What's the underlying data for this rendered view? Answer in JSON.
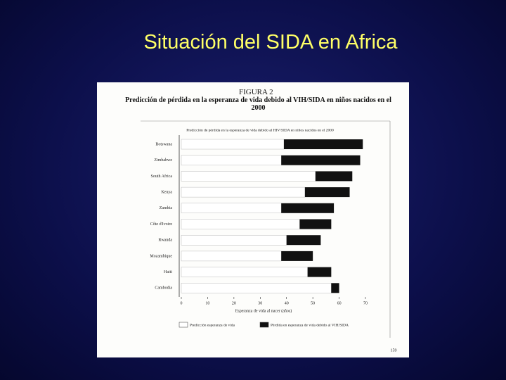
{
  "slide_title": "Situación del SIDA en Africa",
  "chart_data": {
    "type": "stacked-bar-horizontal",
    "figure_label": "FIGURA 2",
    "title": "Predicción de pérdida en la esperanza de vida debido al VIH/SIDA en niños nacidos en el 2000",
    "subtitle": "Predicción de pérdida en la esperanza de vida debido al HIV/SIDA en niños nacidos en el 2000",
    "x_label": "Esperanza de vida al nacer (años)",
    "categories": [
      "Botswana",
      "Zimbabwe",
      "South Africa",
      "Kenya",
      "Zambia",
      "Côte d'Ivoire",
      "Rwanda",
      "Mozambique",
      "Haiti",
      "Cambodia"
    ],
    "series": [
      {
        "name": "Predicción esperanza de vida",
        "color": "#ffffff",
        "values": [
          39,
          38,
          51,
          47,
          38,
          45,
          40,
          38,
          48,
          57
        ]
      },
      {
        "name": "Pérdida en esperanza de vida debido al VIH/SIDA",
        "color": "#111111",
        "values": [
          30,
          30,
          14,
          17,
          20,
          12,
          13,
          12,
          9,
          3
        ]
      }
    ],
    "xlim": [
      0,
      70
    ],
    "xticks": [
      0,
      10,
      20,
      30,
      40,
      50,
      60,
      70
    ],
    "page_number": "159"
  }
}
